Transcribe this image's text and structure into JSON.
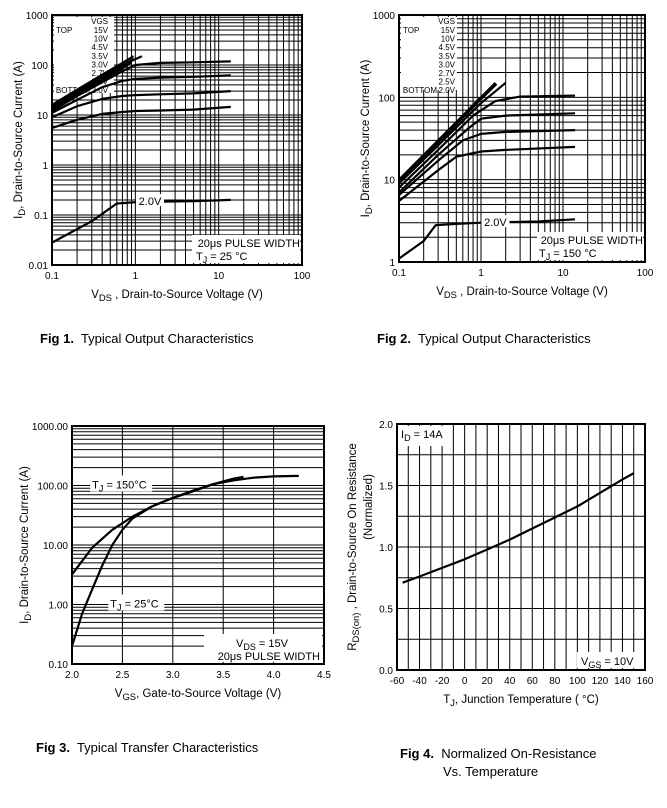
{
  "captions": [
    {
      "num": "Fig 1.",
      "text": "Typical Output Characteristics"
    },
    {
      "num": "Fig 2.",
      "text": "Typical Output Characteristics"
    },
    {
      "num": "Fig 3.",
      "text": "Typical Transfer Characteristics"
    },
    {
      "num": "Fig 4.",
      "text": "Normalized On-Resistance",
      "text2": "Vs. Temperature"
    }
  ],
  "chart_data": [
    {
      "id": "fig1",
      "type": "line",
      "title": "Typical Output Characteristics",
      "xscale": "log",
      "yscale": "log",
      "xlim": [
        0.1,
        100
      ],
      "ylim": [
        0.01,
        1000
      ],
      "xticks": [
        "0.1",
        "1",
        "10",
        "100"
      ],
      "yticks": [
        "0.01",
        "0.1",
        "1",
        "10",
        "100",
        "1000"
      ],
      "xlabel_main": "V",
      "xlabel_sub": "DS",
      "xlabel_rest": " , Drain-to-Source Voltage (V)",
      "ylabel_main": "I",
      "ylabel_sub": "D",
      "ylabel_rest": ",  Drain-to-Source Current (A)",
      "grid": true,
      "legend": {
        "header": "VGS",
        "top": "TOP",
        "bottom": "BOTTOM",
        "entries": [
          "15V",
          "10V",
          "4.5V",
          "3.5V",
          "3.0V",
          "2.7V",
          "2.5V",
          "2.0V"
        ],
        "placement": "top-left"
      },
      "annotations": {
        "curve_label": "2.0V",
        "line1": "20μs PULSE WIDTH",
        "line2_main": "T",
        "line2_sub": "J",
        "line2_rest": " = 25 °C"
      },
      "series": [
        {
          "name": "15V",
          "x": [
            0.1,
            0.2,
            0.4,
            0.7,
            0.95
          ],
          "y": [
            16,
            32,
            64,
            110,
            150
          ]
        },
        {
          "name": "10V",
          "x": [
            0.1,
            0.2,
            0.4,
            0.7,
            1.2
          ],
          "y": [
            15,
            30,
            60,
            100,
            150
          ]
        },
        {
          "name": "4.5V",
          "x": [
            0.1,
            0.2,
            0.4,
            0.7,
            0.95
          ],
          "y": [
            14,
            28,
            55,
            95,
            135
          ]
        },
        {
          "name": "3.5V",
          "x": [
            0.1,
            0.2,
            0.4,
            0.7,
            0.9
          ],
          "y": [
            13,
            26,
            50,
            85,
            115
          ]
        },
        {
          "name": "3.0V",
          "x": [
            0.1,
            0.2,
            0.4,
            0.7,
            1,
            2,
            5,
            14
          ],
          "y": [
            12,
            24,
            45,
            75,
            100,
            110,
            113,
            118
          ]
        },
        {
          "name": "2.7V",
          "x": [
            0.1,
            0.2,
            0.4,
            0.7,
            1,
            2,
            5,
            14
          ],
          "y": [
            11,
            20,
            36,
            48,
            53,
            56,
            58,
            62
          ]
        },
        {
          "name": "2.5V",
          "x": [
            0.1,
            0.2,
            0.4,
            0.7,
            1,
            2,
            5,
            14
          ],
          "y": [
            9,
            15,
            21,
            24,
            25,
            26,
            27,
            30
          ]
        },
        {
          "name": "2.0V(upper)",
          "x": [
            0.1,
            0.2,
            0.4,
            0.7,
            1,
            2,
            5,
            14
          ],
          "y": [
            5.5,
            8,
            10.5,
            11.5,
            12,
            12.3,
            12.8,
            14.5
          ]
        },
        {
          "name": "2.0V",
          "x": [
            0.1,
            0.3,
            0.6,
            1,
            2,
            5,
            14
          ],
          "y": [
            0.028,
            0.075,
            0.17,
            0.18,
            0.185,
            0.19,
            0.2
          ]
        }
      ]
    },
    {
      "id": "fig2",
      "type": "line",
      "title": "Typical Output Characteristics",
      "xscale": "log",
      "yscale": "log",
      "xlim": [
        0.1,
        100
      ],
      "ylim": [
        1,
        1000
      ],
      "xticks": [
        "0.1",
        "1",
        "10",
        "100"
      ],
      "yticks": [
        "1",
        "10",
        "100",
        "1000"
      ],
      "xlabel_main": "V",
      "xlabel_sub": "DS",
      "xlabel_rest": " , Drain-to-Source Voltage (V)",
      "ylabel_main": "I",
      "ylabel_sub": "D",
      "ylabel_rest": ",  Drain-to-Source Current (A)",
      "grid": true,
      "legend": {
        "header": "VGS",
        "top": "TOP",
        "bottom": "BOTTOM",
        "entries": [
          "15V",
          "10V",
          "4.5V",
          "3.5V",
          "3.0V",
          "2.7V",
          "2.5V",
          "2.0V"
        ],
        "placement": "top-left"
      },
      "annotations": {
        "curve_label": "2.0V",
        "line1": "20μs PULSE WIDTH",
        "line2_main": "T",
        "line2_sub": "J",
        "line2_rest": " = 150 °C"
      },
      "series": [
        {
          "name": "15V",
          "x": [
            0.1,
            0.3,
            1,
            1.5
          ],
          "y": [
            10,
            30,
            100,
            150
          ]
        },
        {
          "name": "10V",
          "x": [
            0.1,
            0.3,
            1,
            1.55
          ],
          "y": [
            9.5,
            28,
            95,
            145
          ]
        },
        {
          "name": "4.5V",
          "x": [
            0.1,
            0.3,
            1,
            2
          ],
          "y": [
            9,
            26,
            85,
            150
          ]
        },
        {
          "name": "3.5V",
          "x": [
            0.1,
            0.3,
            0.8,
            1.5,
            3,
            14
          ],
          "y": [
            8,
            23,
            60,
            90,
            102,
            105
          ]
        },
        {
          "name": "3.0V",
          "x": [
            0.1,
            0.3,
            0.7,
            1,
            2,
            14
          ],
          "y": [
            7,
            20,
            42,
            55,
            60,
            64
          ]
        },
        {
          "name": "2.7V",
          "x": [
            0.1,
            0.3,
            0.6,
            1,
            2,
            14
          ],
          "y": [
            6.5,
            17,
            30,
            36,
            38,
            40
          ]
        },
        {
          "name": "2.5V",
          "x": [
            0.1,
            0.3,
            0.5,
            1,
            2,
            14
          ],
          "y": [
            5.5,
            13,
            19,
            22,
            23,
            25
          ]
        },
        {
          "name": "2.0V",
          "x": [
            0.1,
            0.2,
            0.28,
            0.5,
            1,
            2,
            5,
            14
          ],
          "y": [
            1.1,
            1.8,
            2.8,
            2.9,
            3,
            3.05,
            3.1,
            3.3
          ]
        }
      ]
    },
    {
      "id": "fig3",
      "type": "line",
      "title": "Typical Transfer Characteristics",
      "xscale": "linear",
      "yscale": "log",
      "xlim": [
        2.0,
        4.5
      ],
      "ylim": [
        0.1,
        1000
      ],
      "xticks": [
        "2.0",
        "2.5",
        "3.0",
        "3.5",
        "4.0",
        "4.5"
      ],
      "yticks": [
        "0.10",
        "1.00",
        "10.00",
        "100.00",
        "1000.00"
      ],
      "xlabel_main": "V",
      "xlabel_sub": "GS",
      "xlabel_rest": ", Gate-to-Source Voltage (V)",
      "ylabel_main": "I",
      "ylabel_sub": "D",
      "ylabel_rest": ", Drain-to-Source Current (A)",
      "grid": true,
      "annotations": {
        "t150_main": "T",
        "t150_sub": "J",
        "t150_rest": " = 150°C",
        "t25_main": "T",
        "t25_sub": "J",
        "t25_rest": " = 25°C",
        "vds_main": "V",
        "vds_sub": "DS",
        "vds_rest": " = 15V",
        "pulse": "20μs PULSE WIDTH"
      },
      "series": [
        {
          "name": "TJ = 150°C",
          "x": [
            2.0,
            2.2,
            2.4,
            2.6,
            2.8,
            3.0,
            3.2,
            3.4,
            3.6,
            3.7
          ],
          "y": [
            3.2,
            9,
            18,
            30,
            45,
            62,
            80,
            105,
            130,
            140
          ]
        },
        {
          "name": "TJ = 25°C",
          "x": [
            2.0,
            2.1,
            2.2,
            2.3,
            2.4,
            2.5,
            2.6,
            2.8,
            3.0,
            3.2,
            3.4,
            3.6,
            3.8,
            4.0,
            4.25
          ],
          "y": [
            0.2,
            0.7,
            1.8,
            4.5,
            10,
            18,
            28,
            45,
            62,
            82,
            105,
            122,
            135,
            142,
            145
          ]
        }
      ]
    },
    {
      "id": "fig4",
      "type": "line",
      "title": "Normalized On-Resistance Vs. Temperature",
      "xscale": "linear",
      "yscale": "linear",
      "xlim": [
        -60,
        160
      ],
      "ylim": [
        0.0,
        2.0
      ],
      "xticks": [
        "-60",
        "-40",
        "-20",
        "0",
        "20",
        "40",
        "60",
        "80",
        "100",
        "120",
        "140",
        "160"
      ],
      "yticks": [
        "0.0",
        "0.5",
        "1.0",
        "1.5",
        "2.0"
      ],
      "xlabel_main": "T",
      "xlabel_sub": "J",
      "xlabel_rest": ", Junction Temperature ( °C)",
      "ylabel_main": "R",
      "ylabel_sub": "DS(on)",
      "ylabel_rest": " ,  Drain-to-Source On Resistance",
      "ylabel_line2": "(Normalized)",
      "grid": true,
      "annotations": {
        "id_main": "I",
        "id_sub": "D",
        "id_rest": " = 14A",
        "vgs_main": "V",
        "vgs_sub": "GS",
        "vgs_rest": " = 10V"
      },
      "series": [
        {
          "name": "RDS(on)",
          "x": [
            -55,
            -40,
            -20,
            0,
            20,
            40,
            60,
            80,
            100,
            120,
            140,
            150
          ],
          "y": [
            0.71,
            0.76,
            0.83,
            0.9,
            0.98,
            1.06,
            1.15,
            1.24,
            1.33,
            1.44,
            1.55,
            1.6
          ]
        }
      ]
    }
  ]
}
